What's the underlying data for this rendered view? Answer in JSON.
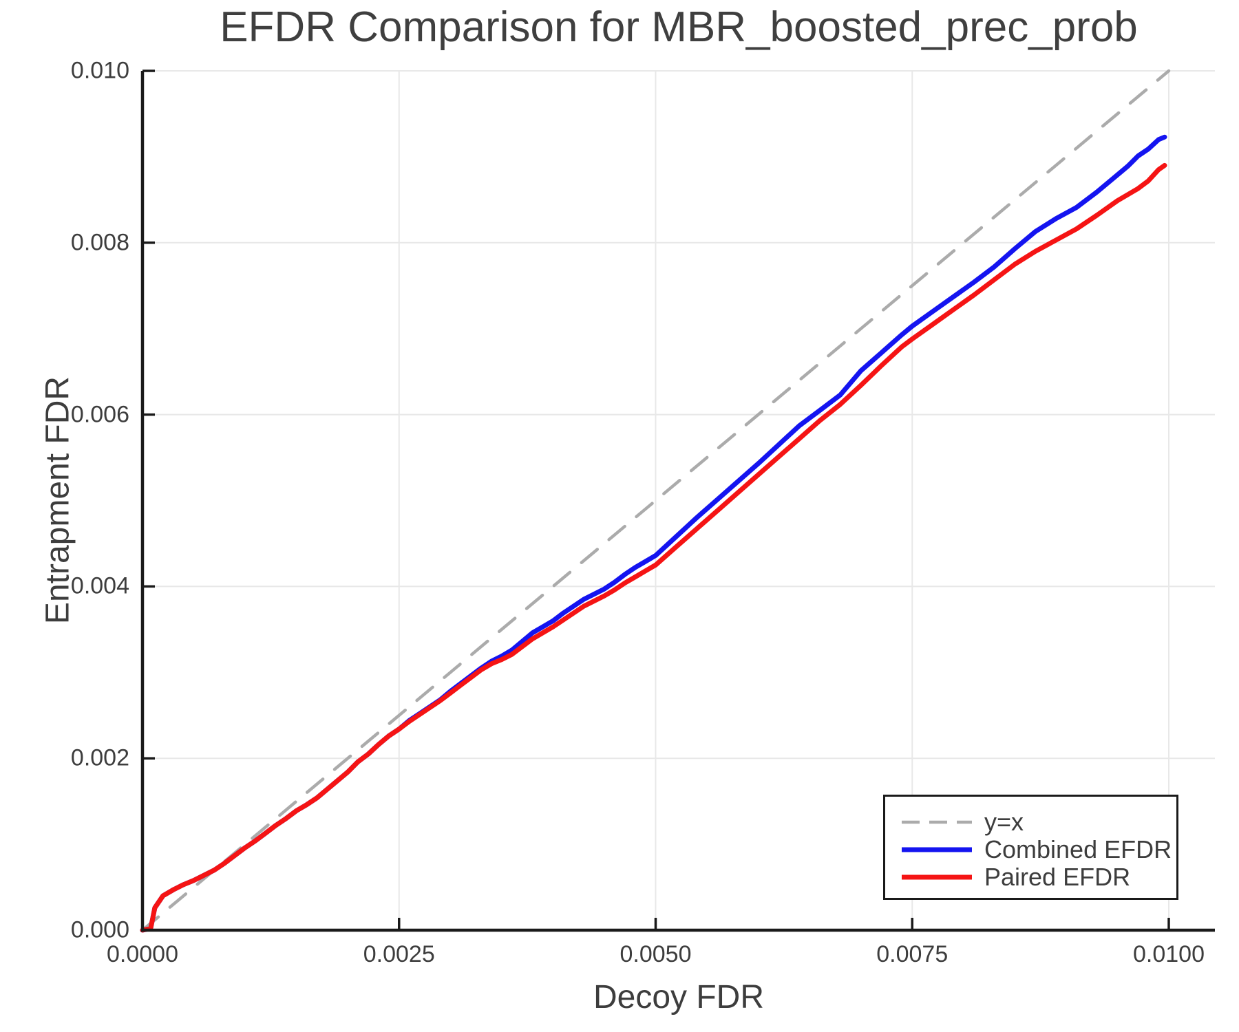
{
  "chart_data": {
    "type": "line",
    "title": "EFDR Comparison for MBR_boosted_prec_prob",
    "xlabel": "Decoy FDR",
    "ylabel": "Entrapment FDR",
    "xlim": [
      0.0,
      0.01
    ],
    "ylim": [
      0.0,
      0.01
    ],
    "grid": true,
    "legend_position": "lower right",
    "x_ticks": {
      "values": [
        0.0,
        0.0025,
        0.005,
        0.0075,
        0.01
      ],
      "labels": [
        "0.0000",
        "0.0025",
        "0.0050",
        "0.0075",
        "0.0100"
      ]
    },
    "y_ticks": {
      "values": [
        0.0,
        0.002,
        0.004,
        0.006,
        0.008,
        0.01
      ],
      "labels": [
        "0.000",
        "0.002",
        "0.004",
        "0.006",
        "0.008",
        "0.010"
      ]
    },
    "colors": {
      "grid": "#e8e8e8",
      "spine": "#1a1a1a",
      "text": "#3d3d3d",
      "legend_border": "#1a1a1a"
    },
    "series": [
      {
        "name": "y=x",
        "color": "#ababab",
        "style": "dashed",
        "width": 4.5,
        "x": [
          0.0,
          0.01
        ],
        "y": [
          0.0,
          0.01
        ]
      },
      {
        "name": "Combined EFDR",
        "color": "#1414f0",
        "style": "solid",
        "width": 7,
        "x": [
          0.0,
          8e-05,
          0.00012,
          0.0002,
          0.0003,
          0.0004,
          0.0005,
          0.0006,
          0.0007,
          0.0008,
          0.0009,
          0.001,
          0.0011,
          0.0012,
          0.0013,
          0.0014,
          0.0015,
          0.0016,
          0.0017,
          0.0018,
          0.0019,
          0.002,
          0.0021,
          0.0022,
          0.0023,
          0.0024,
          0.0025,
          0.0026,
          0.0027,
          0.0028,
          0.0029,
          0.003,
          0.0031,
          0.0032,
          0.0033,
          0.0034,
          0.0035,
          0.0036,
          0.0037,
          0.0038,
          0.0039,
          0.004,
          0.0041,
          0.0042,
          0.0043,
          0.0044,
          0.0045,
          0.0046,
          0.0047,
          0.0048,
          0.0049,
          0.005,
          0.0052,
          0.0054,
          0.0056,
          0.0058,
          0.006,
          0.0062,
          0.0064,
          0.0066,
          0.0068,
          0.007,
          0.0072,
          0.0074,
          0.0075,
          0.0077,
          0.0079,
          0.0081,
          0.0083,
          0.0085,
          0.0087,
          0.0089,
          0.0091,
          0.0093,
          0.0095,
          0.0096,
          0.0097,
          0.0098,
          0.0099,
          0.00996
        ],
        "y": [
          0.0,
          2e-05,
          0.00026,
          0.0004,
          0.00047,
          0.00053,
          0.00058,
          0.00064,
          0.0007,
          0.00078,
          0.00087,
          0.00096,
          0.00104,
          0.00113,
          0.00122,
          0.0013,
          0.00139,
          0.00146,
          0.00154,
          0.00164,
          0.00174,
          0.00184,
          0.00196,
          0.00205,
          0.00216,
          0.00226,
          0.00234,
          0.00244,
          0.00252,
          0.0026,
          0.00268,
          0.00278,
          0.00287,
          0.00296,
          0.00305,
          0.00313,
          0.00319,
          0.00326,
          0.00336,
          0.00346,
          0.00353,
          0.0036,
          0.00369,
          0.00377,
          0.00385,
          0.00391,
          0.00397,
          0.00405,
          0.00414,
          0.00422,
          0.00429,
          0.00436,
          0.00458,
          0.0048,
          0.00501,
          0.00522,
          0.00543,
          0.00565,
          0.00587,
          0.00605,
          0.00623,
          0.00651,
          0.00672,
          0.00693,
          0.00703,
          0.0072,
          0.00737,
          0.00754,
          0.00772,
          0.00793,
          0.00813,
          0.00828,
          0.00841,
          0.00859,
          0.00879,
          0.00889,
          0.00901,
          0.00909,
          0.0092,
          0.00923
        ]
      },
      {
        "name": "Paired EFDR",
        "color": "#f51414",
        "style": "solid",
        "width": 7,
        "x": [
          0.0,
          8e-05,
          0.00012,
          0.0002,
          0.0003,
          0.0004,
          0.0005,
          0.0006,
          0.0007,
          0.0008,
          0.0009,
          0.001,
          0.0011,
          0.0012,
          0.0013,
          0.0014,
          0.0015,
          0.0016,
          0.0017,
          0.0018,
          0.0019,
          0.002,
          0.0021,
          0.0022,
          0.0023,
          0.0024,
          0.0025,
          0.0026,
          0.0027,
          0.0028,
          0.0029,
          0.003,
          0.0031,
          0.0032,
          0.0033,
          0.0034,
          0.0035,
          0.0036,
          0.0037,
          0.0038,
          0.0039,
          0.004,
          0.0041,
          0.0042,
          0.0043,
          0.0044,
          0.0045,
          0.0046,
          0.0047,
          0.0048,
          0.0049,
          0.005,
          0.0052,
          0.0054,
          0.0056,
          0.0058,
          0.006,
          0.0062,
          0.0064,
          0.0066,
          0.0068,
          0.007,
          0.0072,
          0.0074,
          0.0075,
          0.0077,
          0.0079,
          0.0081,
          0.0083,
          0.0085,
          0.0087,
          0.0089,
          0.0091,
          0.0093,
          0.0095,
          0.0096,
          0.0097,
          0.0098,
          0.0099,
          0.00996
        ],
        "y": [
          0.0,
          2e-05,
          0.00026,
          0.0004,
          0.00047,
          0.00053,
          0.00058,
          0.00064,
          0.0007,
          0.00078,
          0.00087,
          0.00096,
          0.00104,
          0.00113,
          0.00122,
          0.0013,
          0.00139,
          0.00146,
          0.00154,
          0.00164,
          0.00174,
          0.00184,
          0.00196,
          0.00205,
          0.00216,
          0.00226,
          0.00234,
          0.00243,
          0.00251,
          0.00259,
          0.00267,
          0.00276,
          0.00285,
          0.00294,
          0.00303,
          0.0031,
          0.00315,
          0.00321,
          0.0033,
          0.00339,
          0.00346,
          0.00353,
          0.00361,
          0.00369,
          0.00377,
          0.00383,
          0.00389,
          0.00396,
          0.00404,
          0.00411,
          0.00418,
          0.00425,
          0.00446,
          0.00467,
          0.00488,
          0.00509,
          0.0053,
          0.00551,
          0.00572,
          0.00593,
          0.00612,
          0.00634,
          0.00657,
          0.00679,
          0.00688,
          0.00705,
          0.00722,
          0.00739,
          0.00757,
          0.00775,
          0.0079,
          0.00803,
          0.00816,
          0.00832,
          0.00849,
          0.00856,
          0.00863,
          0.00872,
          0.00885,
          0.0089
        ]
      }
    ]
  },
  "legend": {
    "items": [
      "y=x",
      "Combined EFDR",
      "Paired EFDR"
    ]
  }
}
